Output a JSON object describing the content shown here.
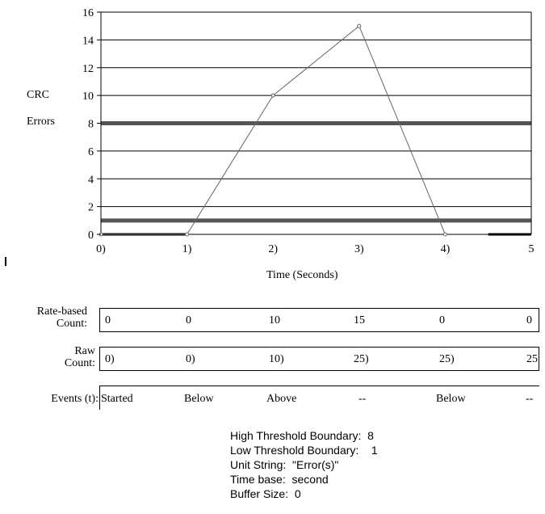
{
  "chart_data": {
    "type": "line",
    "x": [
      0,
      1,
      2,
      3,
      4
    ],
    "x_tick_labels": [
      "0)",
      "1)",
      "2)",
      "3)",
      "4)",
      "5"
    ],
    "y_ticks": [
      0,
      2,
      4,
      6,
      8,
      10,
      12,
      14,
      16
    ],
    "series": [
      {
        "values": [
          0,
          0,
          10,
          15,
          0
        ]
      }
    ],
    "thresholds": {
      "high": 8,
      "low": 1
    },
    "xlabel": "Time (Seconds)",
    "ylabel": [
      "CRC",
      "Errors"
    ],
    "xlim": [
      0,
      5
    ],
    "ylim": [
      0,
      16
    ],
    "grid": true
  },
  "table": {
    "rate": {
      "label": [
        "Rate-based",
        "Count:"
      ],
      "values": [
        "0",
        "0",
        "10",
        "15",
        "0",
        "0"
      ]
    },
    "raw": {
      "label": [
        "Raw",
        "Count:"
      ],
      "values": [
        "0)",
        "0)",
        "10)",
        "25)",
        "25)",
        "25"
      ]
    },
    "events": {
      "label": "Events (t):",
      "values": [
        "Started",
        "Below",
        "Above",
        "--",
        "Below",
        "--"
      ]
    }
  },
  "info": {
    "high": "High Threshold Boundary:  8",
    "low": "Low Threshold Boundary:    1",
    "unit": "Unit String:  \"Error(s)\"",
    "timebase": "Time base:  second",
    "buffer": "Buffer Size:  0"
  }
}
